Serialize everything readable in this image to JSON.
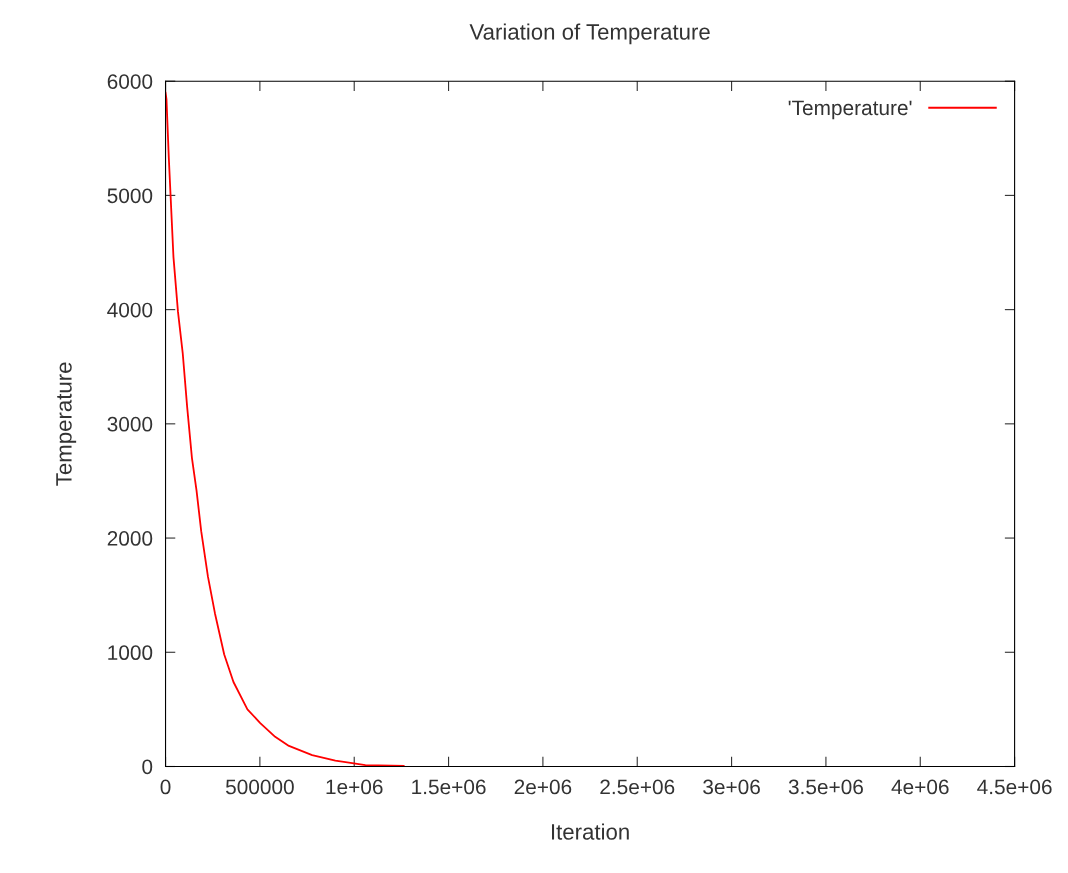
{
  "chart_data": {
    "type": "line",
    "title": "Variation of Temperature",
    "xlabel": "Iteration",
    "ylabel": "Temperature",
    "x": [
      0,
      5000,
      17000,
      42000,
      66000,
      91000,
      115000,
      140000,
      164000,
      189000,
      225000,
      262000,
      311000,
      360000,
      434000,
      502000,
      581000,
      654000,
      777000,
      900000,
      998000,
      1059000,
      1262000
    ],
    "series": [
      {
        "name": "'Temperature'",
        "color": "#ff0000",
        "values": [
          5900,
          5840,
          5340,
          4460,
          3980,
          3620,
          3140,
          2700,
          2420,
          2060,
          1660,
          1340,
          980,
          740,
          500,
          380,
          260,
          180,
          100,
          52,
          28,
          12,
          5
        ]
      }
    ],
    "xlim": [
      0,
      4500000
    ],
    "ylim": [
      0,
      6000
    ],
    "xticks": [
      0,
      500000,
      {
        "value": 1000000,
        "label": "1e+06"
      },
      {
        "value": 1500000,
        "label": "1.5e+06"
      },
      {
        "value": 2000000,
        "label": "2e+06"
      },
      {
        "value": 2500000,
        "label": "2.5e+06"
      },
      {
        "value": 3000000,
        "label": "3e+06"
      },
      {
        "value": 3500000,
        "label": "3.5e+06"
      },
      {
        "value": 4000000,
        "label": "4e+06"
      },
      {
        "value": 4500000,
        "label": "4.5e+06"
      }
    ],
    "yticks": [
      0,
      1000,
      2000,
      3000,
      4000,
      5000,
      6000
    ],
    "legend": "top right",
    "grid": false,
    "marker": "none",
    "line_style": "solid"
  }
}
